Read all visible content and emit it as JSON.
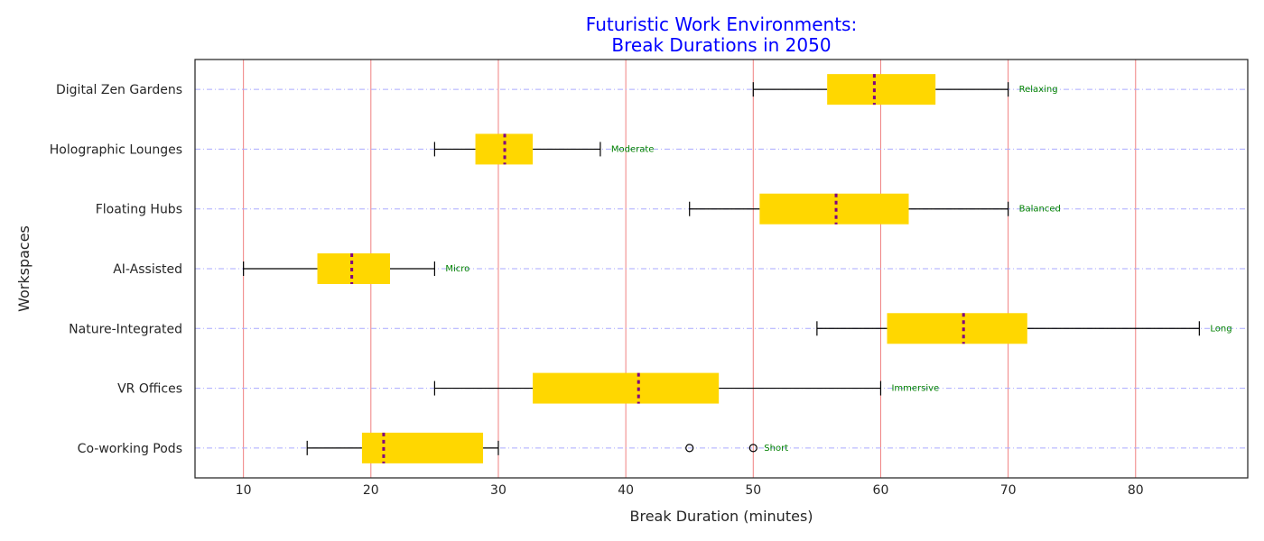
{
  "chart_data": {
    "type": "boxplot",
    "orientation": "horizontal",
    "title_lines": [
      "Futuristic Work Environments:",
      "Break Durations in 2050"
    ],
    "xlabel": "Break Duration (minutes)",
    "ylabel": "Workspaces",
    "xlim": [
      6.2,
      88.8
    ],
    "xticks": [
      10,
      20,
      30,
      40,
      50,
      60,
      70,
      80
    ],
    "categories": [
      "Co-working Pods",
      "VR Offices",
      "Nature-Integrated",
      "AI-Assisted",
      "Floating Hubs",
      "Holographic Lounges",
      "Digital Zen Gardens"
    ],
    "boxes": [
      {
        "label": "Co-working Pods",
        "whisker_low": 15,
        "q1": 19.3,
        "median": 21,
        "q3": 28.8,
        "whisker_high": 30,
        "outliers": [
          45,
          50
        ],
        "annotation": "Short"
      },
      {
        "label": "VR Offices",
        "whisker_low": 25,
        "q1": 32.7,
        "median": 41,
        "q3": 47.3,
        "whisker_high": 60,
        "outliers": [],
        "annotation": "Immersive"
      },
      {
        "label": "Nature-Integrated",
        "whisker_low": 55,
        "q1": 60.5,
        "median": 66.5,
        "q3": 71.5,
        "whisker_high": 85,
        "outliers": [],
        "annotation": "Long"
      },
      {
        "label": "AI-Assisted",
        "whisker_low": 10,
        "q1": 15.8,
        "median": 18.5,
        "q3": 21.5,
        "whisker_high": 25,
        "outliers": [],
        "annotation": "Micro"
      },
      {
        "label": "Floating Hubs",
        "whisker_low": 45,
        "q1": 50.5,
        "median": 56.5,
        "q3": 62.2,
        "whisker_high": 70,
        "outliers": [],
        "annotation": "Balanced"
      },
      {
        "label": "Holographic Lounges",
        "whisker_low": 25,
        "q1": 28.2,
        "median": 30.5,
        "q3": 32.7,
        "whisker_high": 38,
        "outliers": [],
        "annotation": "Moderate"
      },
      {
        "label": "Digital Zen Gardens",
        "whisker_low": 50,
        "q1": 55.8,
        "median": 59.5,
        "q3": 64.3,
        "whisker_high": 70,
        "outliers": [],
        "annotation": "Relaxing"
      }
    ],
    "grid": {
      "x": true,
      "y": true
    },
    "colors": {
      "box_fill": "#ffd700",
      "median": "#800080",
      "whisker": "#000000",
      "x_grid": "#f08080",
      "y_grid": "#aaaaff",
      "annotation": "#008000",
      "title": "#0000ff"
    }
  }
}
